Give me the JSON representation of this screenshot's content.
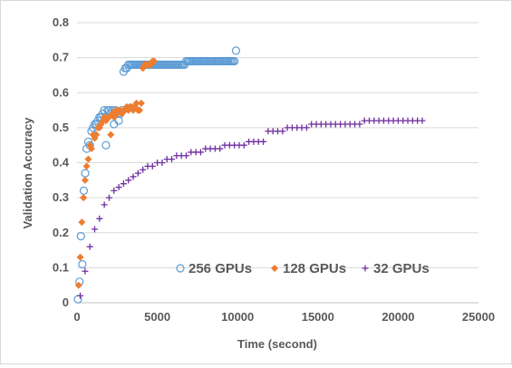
{
  "chart_data": {
    "type": "scatter",
    "xlabel": "Time (second)",
    "ylabel": "Validation Accuracy",
    "xlim": [
      0,
      25000
    ],
    "ylim": [
      0,
      0.8
    ],
    "x_ticks": [
      "0",
      "5000",
      "10000",
      "15000",
      "20000",
      "25000"
    ],
    "y_ticks": [
      "0",
      "0.1",
      "0.2",
      "0.3",
      "0.4",
      "0.5",
      "0.6",
      "0.7",
      "0.8"
    ],
    "grid": true,
    "legend_position": "bottom-right inside",
    "series": [
      {
        "name": "256 GPUs",
        "marker": "circle-open",
        "color": "#5b9bd5",
        "x": [
          60,
          150,
          240,
          330,
          420,
          510,
          600,
          700,
          800,
          900,
          1000,
          1100,
          1200,
          1300,
          1400,
          1500,
          1600,
          1700,
          1800,
          1900,
          2000,
          2100,
          2200,
          2300,
          2400,
          2500,
          2600,
          2700,
          2800,
          2900,
          3000,
          3100,
          3200,
          3300,
          3400,
          3500,
          3600,
          3700,
          3800,
          3900,
          4000,
          4100,
          4200,
          4300,
          4400,
          4500,
          4600,
          4700,
          4800,
          4900,
          5000,
          5100,
          5200,
          5300,
          5400,
          5500,
          5600,
          5700,
          5800,
          5900,
          6000,
          6100,
          6200,
          6300,
          6400,
          6500,
          6600,
          6700,
          6800,
          6900,
          7000,
          7100,
          7200,
          7300,
          7400,
          7500,
          7600,
          7700,
          7800,
          7900,
          8000,
          8100,
          8200,
          8300,
          8400,
          8500,
          8600,
          8700,
          8800,
          8900,
          9000,
          9100,
          9200,
          9300,
          9400,
          9500,
          9600,
          9700,
          9800,
          9900
        ],
        "y": [
          0.01,
          0.06,
          0.19,
          0.11,
          0.32,
          0.37,
          0.44,
          0.46,
          0.45,
          0.49,
          0.5,
          0.51,
          0.51,
          0.52,
          0.53,
          0.53,
          0.54,
          0.55,
          0.45,
          0.55,
          0.55,
          0.54,
          0.55,
          0.51,
          0.55,
          0.54,
          0.52,
          0.54,
          0.55,
          0.66,
          0.67,
          0.67,
          0.68,
          0.68,
          0.68,
          0.68,
          0.68,
          0.68,
          0.68,
          0.68,
          0.68,
          0.68,
          0.68,
          0.68,
          0.68,
          0.68,
          0.68,
          0.68,
          0.68,
          0.68,
          0.68,
          0.68,
          0.68,
          0.68,
          0.68,
          0.68,
          0.68,
          0.68,
          0.68,
          0.68,
          0.68,
          0.68,
          0.68,
          0.68,
          0.68,
          0.68,
          0.68,
          0.68,
          0.69,
          0.69,
          0.69,
          0.69,
          0.69,
          0.69,
          0.69,
          0.69,
          0.69,
          0.69,
          0.69,
          0.69,
          0.69,
          0.69,
          0.69,
          0.69,
          0.69,
          0.69,
          0.69,
          0.69,
          0.69,
          0.69,
          0.69,
          0.69,
          0.69,
          0.69,
          0.69,
          0.69,
          0.69,
          0.69,
          0.69,
          0.72
        ]
      },
      {
        "name": "128 GPUs",
        "marker": "diamond",
        "color": "#ed7d31",
        "x": [
          100,
          200,
          300,
          400,
          500,
          600,
          700,
          800,
          900,
          1000,
          1100,
          1200,
          1300,
          1400,
          1500,
          1600,
          1700,
          1800,
          1900,
          2000,
          2100,
          2200,
          2300,
          2400,
          2500,
          2600,
          2700,
          2800,
          2900,
          3000,
          3100,
          3200,
          3300,
          3400,
          3500,
          3600,
          3700,
          3800,
          3900,
          4000,
          4100,
          4200,
          4300,
          4400,
          4500,
          4600,
          4700,
          4800
        ],
        "y": [
          0.05,
          0.13,
          0.23,
          0.3,
          0.35,
          0.39,
          0.41,
          0.45,
          0.44,
          0.48,
          0.47,
          0.48,
          0.5,
          0.5,
          0.51,
          0.52,
          0.53,
          0.52,
          0.53,
          0.53,
          0.48,
          0.54,
          0.53,
          0.55,
          0.54,
          0.55,
          0.55,
          0.54,
          0.55,
          0.55,
          0.56,
          0.55,
          0.56,
          0.56,
          0.55,
          0.56,
          0.57,
          0.55,
          0.55,
          0.57,
          0.67,
          0.68,
          0.68,
          0.68,
          0.68,
          0.68,
          0.69,
          0.69
        ]
      },
      {
        "name": "32 GPUs",
        "marker": "plus",
        "color": "#7030a0",
        "x": [
          200,
          500,
          800,
          1100,
          1400,
          1700,
          2000,
          2300,
          2600,
          2900,
          3200,
          3500,
          3800,
          4100,
          4400,
          4700,
          5000,
          5300,
          5600,
          5900,
          6200,
          6500,
          6800,
          7100,
          7400,
          7700,
          8000,
          8300,
          8600,
          8900,
          9200,
          9500,
          9800,
          10100,
          10400,
          10700,
          11000,
          11300,
          11600,
          11900,
          12200,
          12500,
          12800,
          13100,
          13400,
          13700,
          14000,
          14300,
          14600,
          14900,
          15200,
          15500,
          15800,
          16100,
          16400,
          16700,
          17000,
          17300,
          17600,
          17900,
          18200,
          18500,
          18800,
          19100,
          19400,
          19700,
          20000,
          20300,
          20600,
          20900,
          21200,
          21500
        ],
        "y": [
          0.02,
          0.09,
          0.16,
          0.21,
          0.24,
          0.28,
          0.3,
          0.32,
          0.33,
          0.34,
          0.35,
          0.36,
          0.37,
          0.38,
          0.39,
          0.39,
          0.4,
          0.4,
          0.41,
          0.41,
          0.42,
          0.42,
          0.42,
          0.43,
          0.43,
          0.43,
          0.44,
          0.44,
          0.44,
          0.44,
          0.45,
          0.45,
          0.45,
          0.45,
          0.45,
          0.46,
          0.46,
          0.46,
          0.46,
          0.49,
          0.49,
          0.49,
          0.49,
          0.5,
          0.5,
          0.5,
          0.5,
          0.5,
          0.51,
          0.51,
          0.51,
          0.51,
          0.51,
          0.51,
          0.51,
          0.51,
          0.51,
          0.51,
          0.51,
          0.52,
          0.52,
          0.52,
          0.52,
          0.52,
          0.52,
          0.52,
          0.52,
          0.52,
          0.52,
          0.52,
          0.52,
          0.52
        ]
      }
    ]
  }
}
